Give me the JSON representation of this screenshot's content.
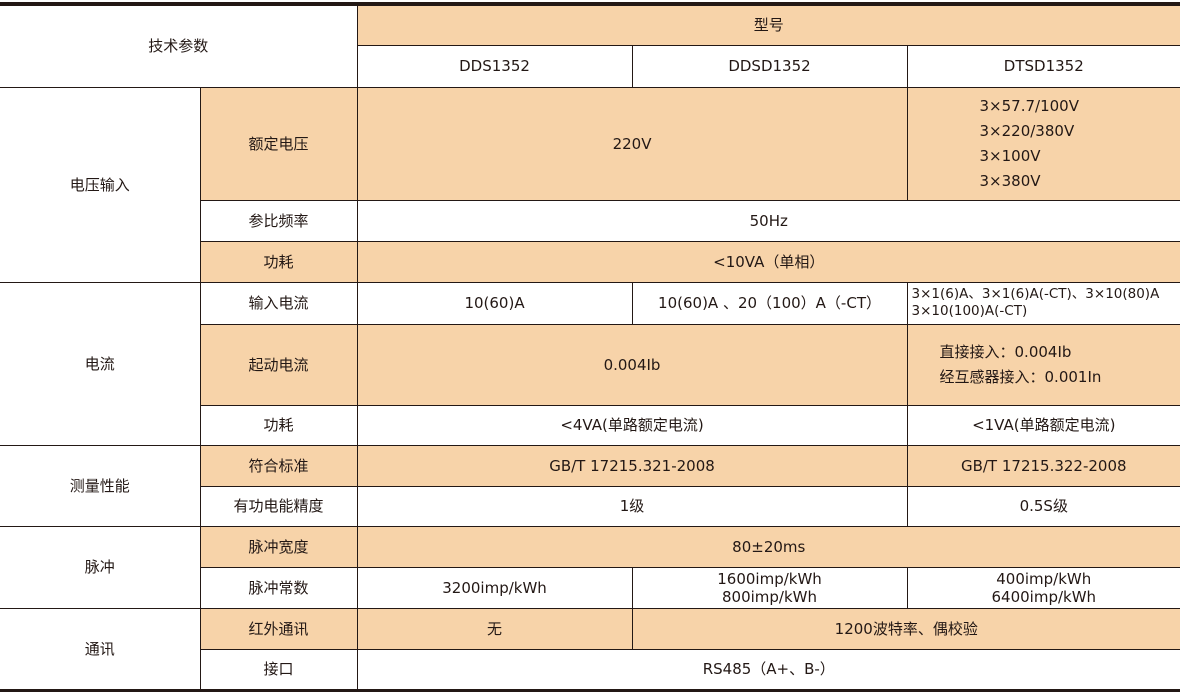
{
  "colors": {
    "shade": "#f7d3a9",
    "border": "#231815"
  },
  "header": {
    "param": "技术参数",
    "model": "型号",
    "models": [
      "DDS1352",
      "DDSD1352",
      "DTSD1352"
    ]
  },
  "voltage": {
    "group": "电压输入",
    "rated": "额定电压",
    "rated_val": "220V",
    "rated_dtsd": [
      "3×57.7/100V",
      "3×220/380V",
      "3×100V",
      "3×380V"
    ],
    "freq": "参比频率",
    "freq_val": "50Hz",
    "power": "功耗",
    "power_val": "<10VA（单相）"
  },
  "current": {
    "group": "电流",
    "input": "输入电流",
    "input_dds": "10(60)A",
    "input_ddsd": "10(60)A 、20（100）A（-CT）",
    "input_dtsd": [
      "3×1(6)A、3×1(6)A(-CT)、3×10(80)A",
      "3×10(100)A(-CT)"
    ],
    "start": "起动电流",
    "start_val": "0.004Ib",
    "start_dtsd": [
      "直接接入：0.004Ib",
      "经互感器接入：0.001In"
    ],
    "power": "功耗",
    "power_val": "<4VA(单路额定电流)",
    "power_dtsd": "<1VA(单路额定电流)"
  },
  "measure": {
    "group": "测量性能",
    "std": "符合标准",
    "std_val": "GB/T 17215.321-2008",
    "std_dtsd": "GB/T 17215.322-2008",
    "acc": "有功电能精度",
    "acc_val": "1级",
    "acc_dtsd": "0.5S级"
  },
  "pulse": {
    "group": "脉冲",
    "width": "脉冲宽度",
    "width_val": "80±20ms",
    "const": "脉冲常数",
    "const_dds": "3200imp/kWh",
    "const_ddsd": [
      "1600imp/kWh",
      "800imp/kWh"
    ],
    "const_dtsd": [
      "400imp/kWh",
      "6400imp/kWh"
    ]
  },
  "comm": {
    "group": "通讯",
    "ir": "红外通讯",
    "ir_dds": "无",
    "ir_val": "1200波特率、偶校验",
    "iface": "接口",
    "iface_val": "RS485（A+、B-）"
  }
}
